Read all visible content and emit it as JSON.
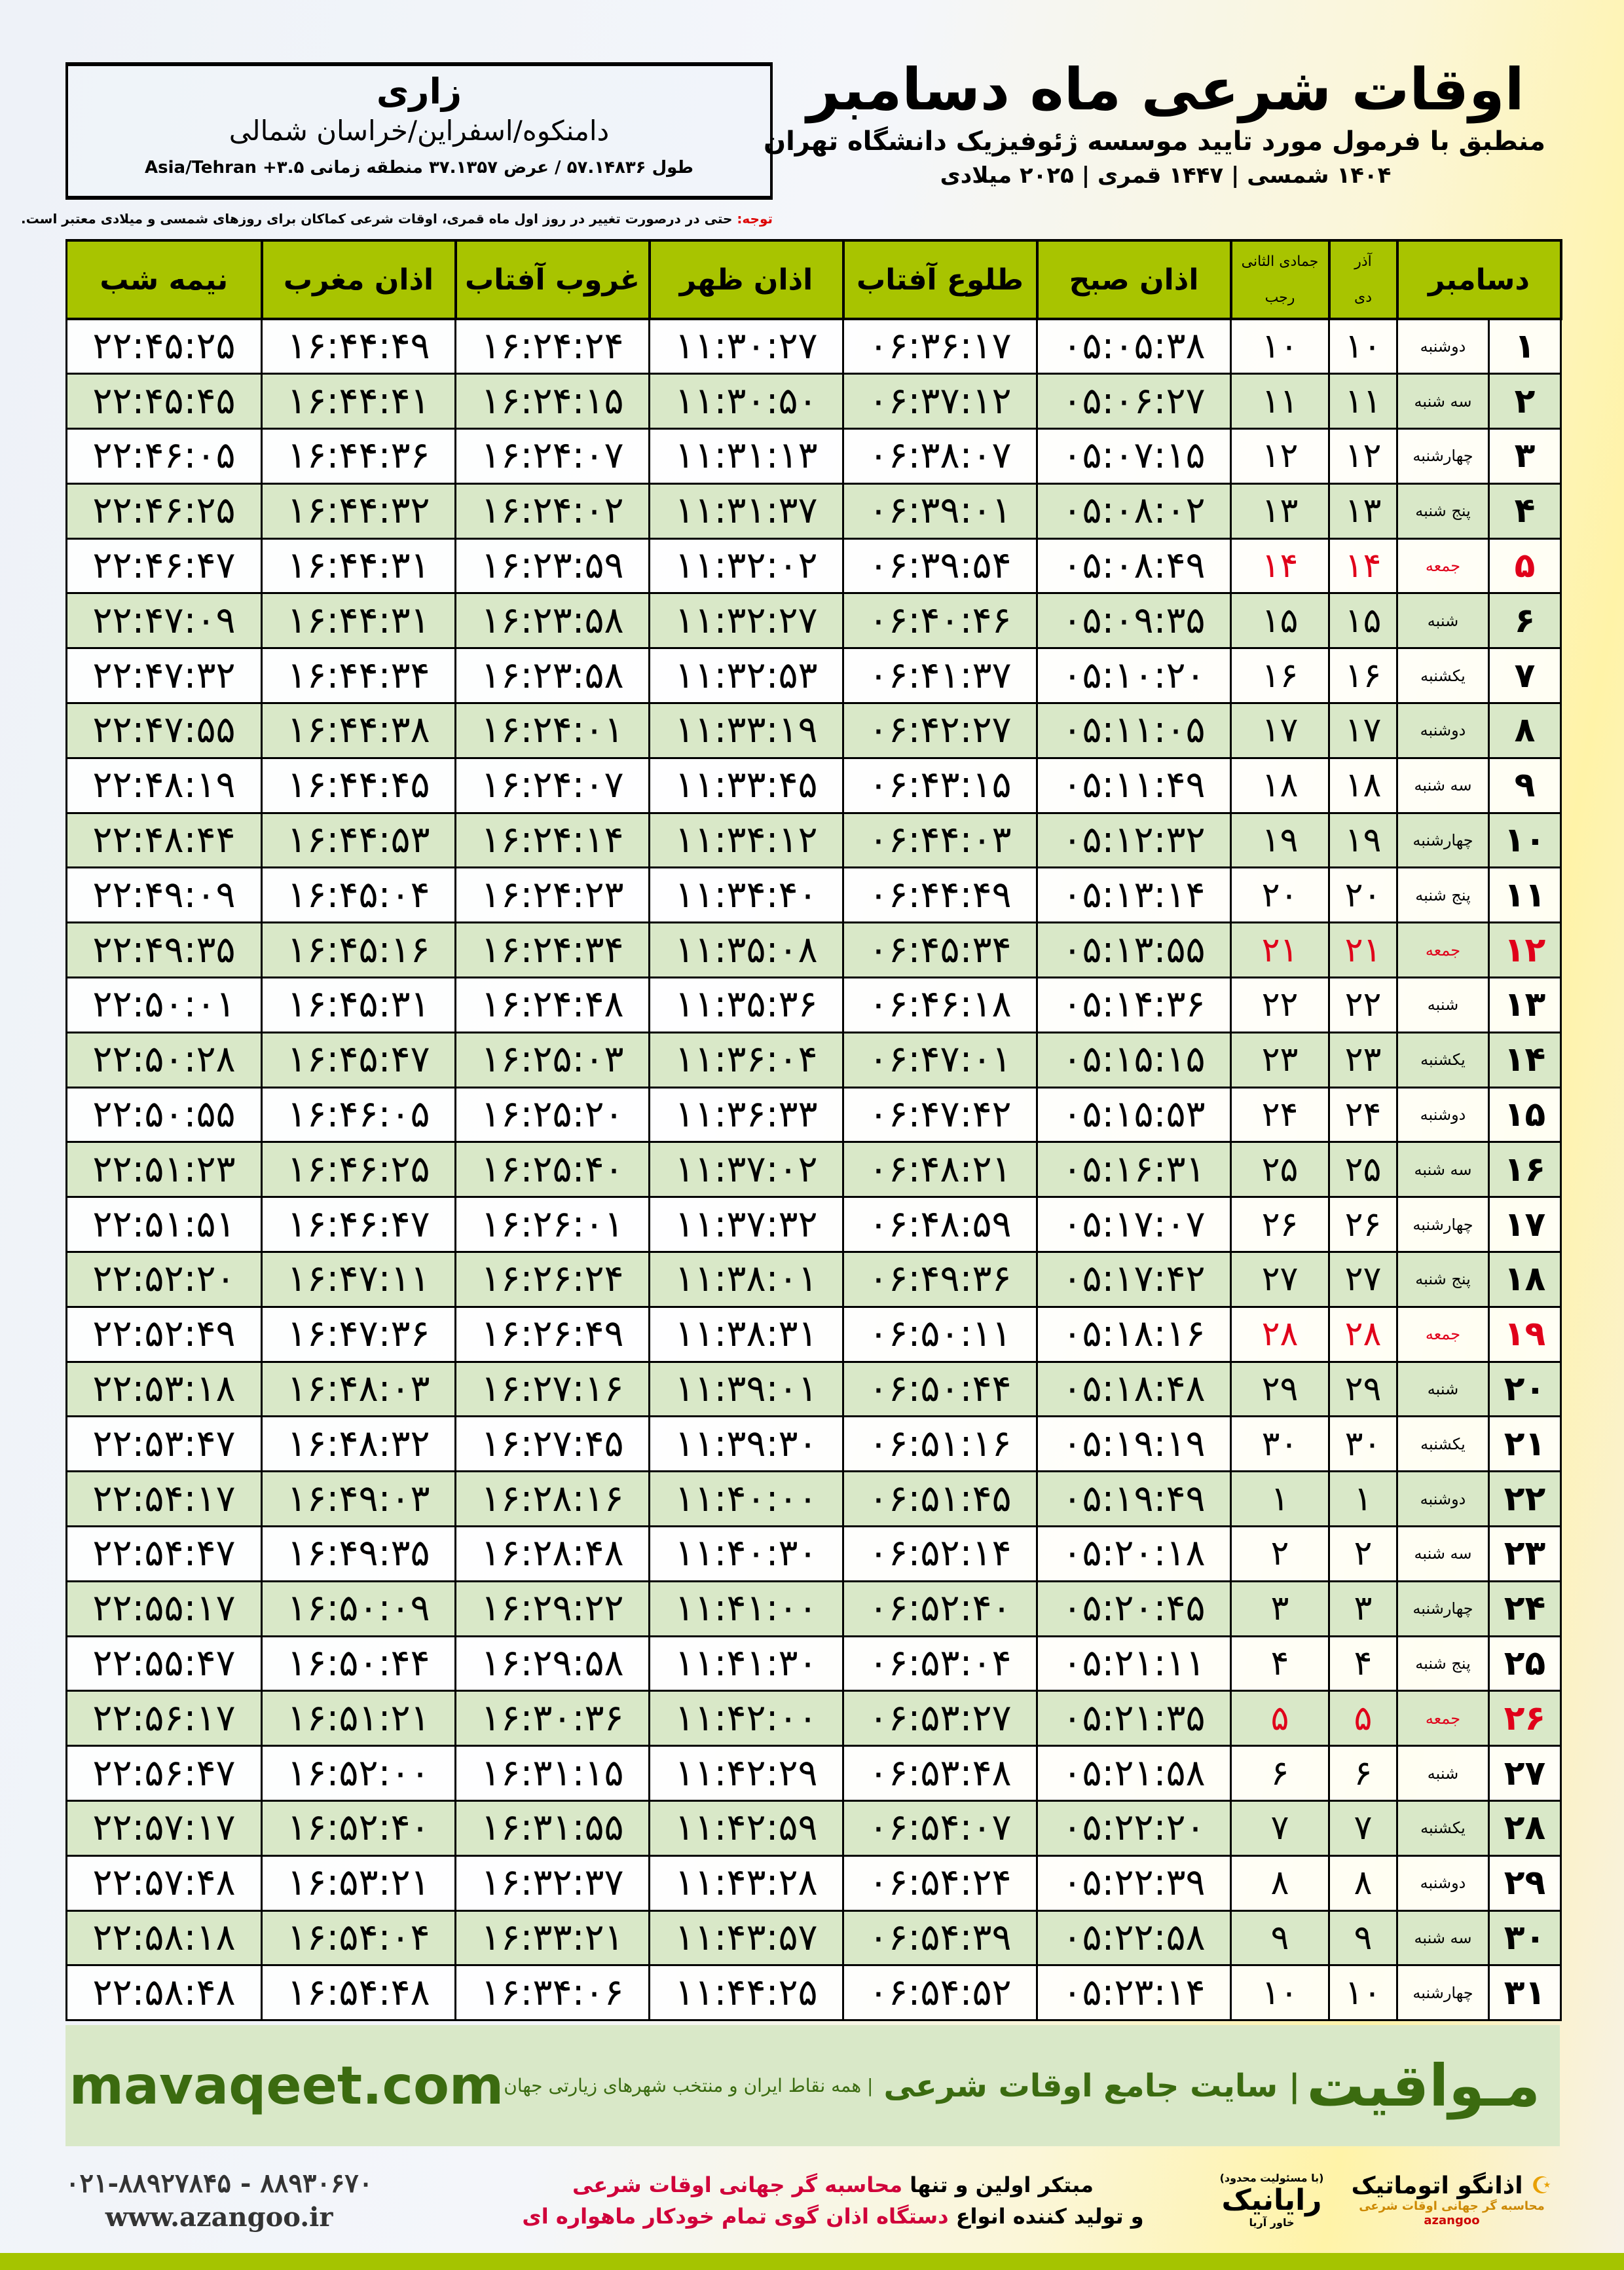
{
  "info": {
    "city": "زاری",
    "region": "دامنکوه/اسفراین/خراسان شمالی",
    "coords": "طول ۵۷.۱۴۸۳۶ / عرض ۳۷.۱۳۵۷ منطقه زمانی ۳.۵+ Asia/Tehran"
  },
  "title": {
    "main": "اوقات شرعی ماه دسامبر",
    "sub": "منطبق با فرمول مورد تایید موسسه ژئوفیزیک دانشگاه تهران",
    "years": "۱۴۰۴ شمسی | ۱۴۴۷ قمری | ۲۰۲۵ میلادی"
  },
  "note": {
    "label": "توجه:",
    "text": " حتی در درصورت تغییر در روز اول ماه قمری، اوقات شرعی کماکان برای روزهای شمسی و میلادی معتبر است."
  },
  "colors": {
    "header": "#a8c400",
    "alt_row": "#d9e8c8",
    "friday": "#e0001a",
    "brand": "#3b6b10"
  },
  "headers": {
    "day": "دسامبر",
    "shamsi_top": "آذر",
    "shamsi_bottom": "دی",
    "qamari_top": "جمادی الثانی",
    "qamari_bottom": "رجب",
    "fajr": "اذان صبح",
    "sunrise": "طلوع آفتاب",
    "dhuhr": "اذان ظهر",
    "sunset": "غروب آفتاب",
    "maghrib": "اذان مغرب",
    "midnight": "نیمه شب"
  },
  "rows": [
    [
      "۱",
      "دوشنبه",
      "۱۰",
      "۱۰",
      "۰۵:۰۵:۳۸",
      "۰۶:۳۶:۱۷",
      "۱۱:۳۰:۲۷",
      "۱۶:۲۴:۲۴",
      "۱۶:۴۴:۴۹",
      "۲۲:۴۵:۲۵"
    ],
    [
      "۲",
      "سه شنبه",
      "۱۱",
      "۱۱",
      "۰۵:۰۶:۲۷",
      "۰۶:۳۷:۱۲",
      "۱۱:۳۰:۵۰",
      "۱۶:۲۴:۱۵",
      "۱۶:۴۴:۴۱",
      "۲۲:۴۵:۴۵"
    ],
    [
      "۳",
      "چهارشنبه",
      "۱۲",
      "۱۲",
      "۰۵:۰۷:۱۵",
      "۰۶:۳۸:۰۷",
      "۱۱:۳۱:۱۳",
      "۱۶:۲۴:۰۷",
      "۱۶:۴۴:۳۶",
      "۲۲:۴۶:۰۵"
    ],
    [
      "۴",
      "پنج شنبه",
      "۱۳",
      "۱۳",
      "۰۵:۰۸:۰۲",
      "۰۶:۳۹:۰۱",
      "۱۱:۳۱:۳۷",
      "۱۶:۲۴:۰۲",
      "۱۶:۴۴:۳۲",
      "۲۲:۴۶:۲۵"
    ],
    [
      "۵",
      "جمعه",
      "۱۴",
      "۱۴",
      "۰۵:۰۸:۴۹",
      "۰۶:۳۹:۵۴",
      "۱۱:۳۲:۰۲",
      "۱۶:۲۳:۵۹",
      "۱۶:۴۴:۳۱",
      "۲۲:۴۶:۴۷"
    ],
    [
      "۶",
      "شنبه",
      "۱۵",
      "۱۵",
      "۰۵:۰۹:۳۵",
      "۰۶:۴۰:۴۶",
      "۱۱:۳۲:۲۷",
      "۱۶:۲۳:۵۸",
      "۱۶:۴۴:۳۱",
      "۲۲:۴۷:۰۹"
    ],
    [
      "۷",
      "یکشنبه",
      "۱۶",
      "۱۶",
      "۰۵:۱۰:۲۰",
      "۰۶:۴۱:۳۷",
      "۱۱:۳۲:۵۳",
      "۱۶:۲۳:۵۸",
      "۱۶:۴۴:۳۴",
      "۲۲:۴۷:۳۲"
    ],
    [
      "۸",
      "دوشنبه",
      "۱۷",
      "۱۷",
      "۰۵:۱۱:۰۵",
      "۰۶:۴۲:۲۷",
      "۱۱:۳۳:۱۹",
      "۱۶:۲۴:۰۱",
      "۱۶:۴۴:۳۸",
      "۲۲:۴۷:۵۵"
    ],
    [
      "۹",
      "سه شنبه",
      "۱۸",
      "۱۸",
      "۰۵:۱۱:۴۹",
      "۰۶:۴۳:۱۵",
      "۱۱:۳۳:۴۵",
      "۱۶:۲۴:۰۷",
      "۱۶:۴۴:۴۵",
      "۲۲:۴۸:۱۹"
    ],
    [
      "۱۰",
      "چهارشنبه",
      "۱۹",
      "۱۹",
      "۰۵:۱۲:۳۲",
      "۰۶:۴۴:۰۳",
      "۱۱:۳۴:۱۲",
      "۱۶:۲۴:۱۴",
      "۱۶:۴۴:۵۳",
      "۲۲:۴۸:۴۴"
    ],
    [
      "۱۱",
      "پنج شنبه",
      "۲۰",
      "۲۰",
      "۰۵:۱۳:۱۴",
      "۰۶:۴۴:۴۹",
      "۱۱:۳۴:۴۰",
      "۱۶:۲۴:۲۳",
      "۱۶:۴۵:۰۴",
      "۲۲:۴۹:۰۹"
    ],
    [
      "۱۲",
      "جمعه",
      "۲۱",
      "۲۱",
      "۰۵:۱۳:۵۵",
      "۰۶:۴۵:۳۴",
      "۱۱:۳۵:۰۸",
      "۱۶:۲۴:۳۴",
      "۱۶:۴۵:۱۶",
      "۲۲:۴۹:۳۵"
    ],
    [
      "۱۳",
      "شنبه",
      "۲۲",
      "۲۲",
      "۰۵:۱۴:۳۶",
      "۰۶:۴۶:۱۸",
      "۱۱:۳۵:۳۶",
      "۱۶:۲۴:۴۸",
      "۱۶:۴۵:۳۱",
      "۲۲:۵۰:۰۱"
    ],
    [
      "۱۴",
      "یکشنبه",
      "۲۳",
      "۲۳",
      "۰۵:۱۵:۱۵",
      "۰۶:۴۷:۰۱",
      "۱۱:۳۶:۰۴",
      "۱۶:۲۵:۰۳",
      "۱۶:۴۵:۴۷",
      "۲۲:۵۰:۲۸"
    ],
    [
      "۱۵",
      "دوشنبه",
      "۲۴",
      "۲۴",
      "۰۵:۱۵:۵۳",
      "۰۶:۴۷:۴۲",
      "۱۱:۳۶:۳۳",
      "۱۶:۲۵:۲۰",
      "۱۶:۴۶:۰۵",
      "۲۲:۵۰:۵۵"
    ],
    [
      "۱۶",
      "سه شنبه",
      "۲۵",
      "۲۵",
      "۰۵:۱۶:۳۱",
      "۰۶:۴۸:۲۱",
      "۱۱:۳۷:۰۲",
      "۱۶:۲۵:۴۰",
      "۱۶:۴۶:۲۵",
      "۲۲:۵۱:۲۳"
    ],
    [
      "۱۷",
      "چهارشنبه",
      "۲۶",
      "۲۶",
      "۰۵:۱۷:۰۷",
      "۰۶:۴۸:۵۹",
      "۱۱:۳۷:۳۲",
      "۱۶:۲۶:۰۱",
      "۱۶:۴۶:۴۷",
      "۲۲:۵۱:۵۱"
    ],
    [
      "۱۸",
      "پنج شنبه",
      "۲۷",
      "۲۷",
      "۰۵:۱۷:۴۲",
      "۰۶:۴۹:۳۶",
      "۱۱:۳۸:۰۱",
      "۱۶:۲۶:۲۴",
      "۱۶:۴۷:۱۱",
      "۲۲:۵۲:۲۰"
    ],
    [
      "۱۹",
      "جمعه",
      "۲۸",
      "۲۸",
      "۰۵:۱۸:۱۶",
      "۰۶:۵۰:۱۱",
      "۱۱:۳۸:۳۱",
      "۱۶:۲۶:۴۹",
      "۱۶:۴۷:۳۶",
      "۲۲:۵۲:۴۹"
    ],
    [
      "۲۰",
      "شنبه",
      "۲۹",
      "۲۹",
      "۰۵:۱۸:۴۸",
      "۰۶:۵۰:۴۴",
      "۱۱:۳۹:۰۱",
      "۱۶:۲۷:۱۶",
      "۱۶:۴۸:۰۳",
      "۲۲:۵۳:۱۸"
    ],
    [
      "۲۱",
      "یکشنبه",
      "۳۰",
      "۳۰",
      "۰۵:۱۹:۱۹",
      "۰۶:۵۱:۱۶",
      "۱۱:۳۹:۳۰",
      "۱۶:۲۷:۴۵",
      "۱۶:۴۸:۳۲",
      "۲۲:۵۳:۴۷"
    ],
    [
      "۲۲",
      "دوشنبه",
      "۱",
      "۱",
      "۰۵:۱۹:۴۹",
      "۰۶:۵۱:۴۵",
      "۱۱:۴۰:۰۰",
      "۱۶:۲۸:۱۶",
      "۱۶:۴۹:۰۳",
      "۲۲:۵۴:۱۷"
    ],
    [
      "۲۳",
      "سه شنبه",
      "۲",
      "۲",
      "۰۵:۲۰:۱۸",
      "۰۶:۵۲:۱۴",
      "۱۱:۴۰:۳۰",
      "۱۶:۲۸:۴۸",
      "۱۶:۴۹:۳۵",
      "۲۲:۵۴:۴۷"
    ],
    [
      "۲۴",
      "چهارشنبه",
      "۳",
      "۳",
      "۰۵:۲۰:۴۵",
      "۰۶:۵۲:۴۰",
      "۱۱:۴۱:۰۰",
      "۱۶:۲۹:۲۲",
      "۱۶:۵۰:۰۹",
      "۲۲:۵۵:۱۷"
    ],
    [
      "۲۵",
      "پنج شنبه",
      "۴",
      "۴",
      "۰۵:۲۱:۱۱",
      "۰۶:۵۳:۰۴",
      "۱۱:۴۱:۳۰",
      "۱۶:۲۹:۵۸",
      "۱۶:۵۰:۴۴",
      "۲۲:۵۵:۴۷"
    ],
    [
      "۲۶",
      "جمعه",
      "۵",
      "۵",
      "۰۵:۲۱:۳۵",
      "۰۶:۵۳:۲۷",
      "۱۱:۴۲:۰۰",
      "۱۶:۳۰:۳۶",
      "۱۶:۵۱:۲۱",
      "۲۲:۵۶:۱۷"
    ],
    [
      "۲۷",
      "شنبه",
      "۶",
      "۶",
      "۰۵:۲۱:۵۸",
      "۰۶:۵۳:۴۸",
      "۱۱:۴۲:۲۹",
      "۱۶:۳۱:۱۵",
      "۱۶:۵۲:۰۰",
      "۲۲:۵۶:۴۷"
    ],
    [
      "۲۸",
      "یکشنبه",
      "۷",
      "۷",
      "۰۵:۲۲:۲۰",
      "۰۶:۵۴:۰۷",
      "۱۱:۴۲:۵۹",
      "۱۶:۳۱:۵۵",
      "۱۶:۵۲:۴۰",
      "۲۲:۵۷:۱۷"
    ],
    [
      "۲۹",
      "دوشنبه",
      "۸",
      "۸",
      "۰۵:۲۲:۳۹",
      "۰۶:۵۴:۲۴",
      "۱۱:۴۳:۲۸",
      "۱۶:۳۲:۳۷",
      "۱۶:۵۳:۲۱",
      "۲۲:۵۷:۴۸"
    ],
    [
      "۳۰",
      "سه شنبه",
      "۹",
      "۹",
      "۰۵:۲۲:۵۸",
      "۰۶:۵۴:۳۹",
      "۱۱:۴۳:۵۷",
      "۱۶:۳۳:۲۱",
      "۱۶:۵۴:۰۴",
      "۲۲:۵۸:۱۸"
    ],
    [
      "۳۱",
      "چهارشنبه",
      "۱۰",
      "۱۰",
      "۰۵:۲۳:۱۴",
      "۰۶:۵۴:۵۲",
      "۱۱:۴۴:۲۵",
      "۱۶:۳۴:۰۶",
      "۱۶:۵۴:۴۸",
      "۲۲:۵۸:۴۸"
    ]
  ],
  "band": {
    "brand": "مـواقیت",
    "slogan": "| سایت جامع اوقات شرعی",
    "tagline": "| همه نقاط ایران و منتخب شهرهای زیارتی جهان",
    "site": "mavaqeet.com"
  },
  "footer": {
    "logo1": "اذانگو اتوماتیک",
    "logo1_sub": "محاسبه گر جهانی اوقات شرعی",
    "logo1_en": "azangoo",
    "logo2": "رایانیک",
    "logo2_sub": "خاور آریا",
    "logo2_note": "(با مسئولیت محدود)",
    "promo1_a": "مبتکر اولین و تنها ",
    "promo1_b": "محاسبه گر جهانی اوقات شرعی",
    "promo2_a": "و تولید کننده انواع ",
    "promo2_b": "دستگاه اذان گوی تمام خودکار ماهواره ای",
    "phone": "۰۲۱-۸۸۹۲۷۸۴۵ - ۸۸۹۳۰۶۷۰",
    "web": "www.azangoo.ir"
  }
}
